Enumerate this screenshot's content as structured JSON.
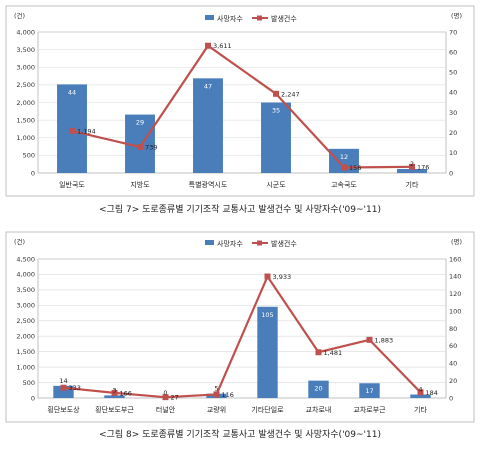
{
  "colors": {
    "bar": "#4a7ebb",
    "line": "#c0504d",
    "grid": "#d9d9d9"
  },
  "chart_data": [
    {
      "type": "bar",
      "caption": "<그림 7> 도로종류별 기기조작 교통사고 발생건수 및 사망자수('09~'11)",
      "left_unit": "(건)",
      "right_unit": "(명)",
      "legend_position": "top-right",
      "categories": [
        "일반국도",
        "지방도",
        "특별광역시도",
        "시군도",
        "고속국도",
        "기타"
      ],
      "series": [
        {
          "name": "사망자수",
          "kind": "bar",
          "axis": "right",
          "values": [
            44,
            29,
            47,
            35,
            12,
            2
          ],
          "labels": [
            "44",
            "29",
            "47",
            "35",
            "12",
            "2"
          ]
        },
        {
          "name": "발생건수",
          "kind": "line",
          "axis": "left",
          "values": [
            1194,
            739,
            3611,
            2247,
            156,
            176
          ],
          "labels": [
            "1,194",
            "739",
            "3,611",
            "2,247",
            "156",
            "176"
          ]
        }
      ],
      "ylim_left": [
        0,
        4000
      ],
      "yticks_left": [
        "0",
        "500",
        "1,000",
        "1,500",
        "2,000",
        "2,500",
        "3,000",
        "3,500",
        "4,000"
      ],
      "ylim_right": [
        0,
        70
      ],
      "yticks_right": [
        "0",
        "10",
        "20",
        "30",
        "40",
        "50",
        "60",
        "70"
      ],
      "grid": true
    },
    {
      "type": "bar",
      "caption": "<그림 8> 도로종류별 기기조작 교통사고 발생건수 및 사망자수('09~'11)",
      "left_unit": "(건)",
      "right_unit": "(명)",
      "legend_position": "top-right",
      "categories": [
        "횡단보도상",
        "횡단보도부근",
        "터널안",
        "교량위",
        "기타단일로",
        "교차로내",
        "교차로부근",
        "기타"
      ],
      "series": [
        {
          "name": "사망자수",
          "kind": "bar",
          "axis": "right",
          "values": [
            14,
            3,
            0,
            5,
            105,
            20,
            17,
            4
          ],
          "labels": [
            "14",
            "3",
            "0",
            "5",
            "105",
            "20",
            "17",
            "4"
          ]
        },
        {
          "name": "발생건수",
          "kind": "line",
          "axis": "left",
          "values": [
            333,
            166,
            27,
            116,
            3933,
            1481,
            1883,
            184
          ],
          "labels": [
            "333",
            "166",
            "27",
            "116",
            "3,933",
            "1,481",
            "1,883",
            "184"
          ]
        }
      ],
      "ylim_left": [
        0,
        4500
      ],
      "yticks_left": [
        "0",
        "500",
        "1,000",
        "1,500",
        "2,000",
        "2,500",
        "3,000",
        "3,500",
        "4,000",
        "4,500"
      ],
      "ylim_right": [
        0,
        160
      ],
      "yticks_right": [
        "0",
        "20",
        "40",
        "60",
        "80",
        "100",
        "120",
        "140",
        "160"
      ],
      "grid": true
    }
  ]
}
